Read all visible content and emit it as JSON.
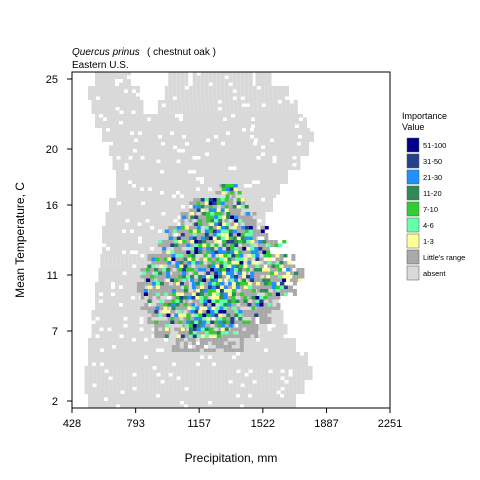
{
  "chart_data": {
    "type": "heatmap",
    "title": {
      "species": "Quercus prinus",
      "common": "( chestnut oak )",
      "region": "Eastern U.S."
    },
    "xlabel": "Precipitation, mm",
    "ylabel": "Mean Temperature, C",
    "x_ticks": [
      428,
      793,
      1157,
      1522,
      1887,
      2251
    ],
    "y_ticks": [
      2,
      7,
      11,
      16,
      20,
      25
    ],
    "xlim": [
      428,
      2251
    ],
    "ylim": [
      1.5,
      25.5
    ],
    "grid": false,
    "legend": {
      "title_lines": [
        "Importance",
        "Value"
      ],
      "placement": "right",
      "entries": [
        {
          "label": "51-100",
          "color": "#00008b"
        },
        {
          "label": "31-50",
          "color": "#27408b"
        },
        {
          "label": "21-30",
          "color": "#1e90ff"
        },
        {
          "label": "11-20",
          "color": "#2e8b57"
        },
        {
          "label": "7-10",
          "color": "#32cd32"
        },
        {
          "label": "4-6",
          "color": "#66ffaa"
        },
        {
          "label": "1-3",
          "color": "#ffff99"
        },
        {
          "label": "Little's range",
          "color": "#a9a9a9"
        },
        {
          "label": "absent",
          "color": "#d9d9d9"
        }
      ]
    },
    "regions": {
      "absent_color": "#d9d9d9",
      "range_color": "#a9a9a9",
      "absent_rows": [
        {
          "t": 25,
          "x": [
            [
              560,
              760
            ],
            [
              980,
              1080
            ],
            [
              1120,
              1460
            ],
            [
              1480,
              1560
            ]
          ]
        },
        {
          "t": 24,
          "x": [
            [
              520,
              800
            ],
            [
              960,
              1560
            ],
            [
              1580,
              1660
            ]
          ]
        },
        {
          "t": 23,
          "x": [
            [
              540,
              820
            ],
            [
              920,
              1700
            ]
          ]
        },
        {
          "t": 22,
          "x": [
            [
              560,
              1760
            ]
          ]
        },
        {
          "t": 21,
          "x": [
            [
              600,
              1800
            ]
          ]
        },
        {
          "t": 20,
          "x": [
            [
              640,
              1780
            ]
          ]
        },
        {
          "t": 19,
          "x": [
            [
              660,
              1720
            ]
          ]
        },
        {
          "t": 18,
          "x": [
            [
              680,
              1660
            ]
          ]
        },
        {
          "t": 17,
          "x": [
            [
              680,
              1600
            ]
          ]
        },
        {
          "t": 16,
          "x": [
            [
              640,
              1560
            ]
          ]
        },
        {
          "t": 15,
          "x": [
            [
              620,
              1520
            ]
          ]
        },
        {
          "t": 14,
          "x": [
            [
              600,
              1480
            ]
          ]
        },
        {
          "t": 13,
          "x": [
            [
              600,
              1480
            ]
          ]
        },
        {
          "t": 12,
          "x": [
            [
              590,
              1520
            ]
          ]
        },
        {
          "t": 11,
          "x": [
            [
              580,
              1560
            ]
          ]
        },
        {
          "t": 10,
          "x": [
            [
              560,
              1580
            ]
          ]
        },
        {
          "t": 9,
          "x": [
            [
              560,
              1600
            ]
          ]
        },
        {
          "t": 8,
          "x": [
            [
              540,
              1620
            ]
          ]
        },
        {
          "t": 7,
          "x": [
            [
              540,
              1660
            ]
          ]
        },
        {
          "t": 6,
          "x": [
            [
              520,
              1700
            ]
          ]
        },
        {
          "t": 5,
          "x": [
            [
              520,
              1760
            ]
          ]
        },
        {
          "t": 4,
          "x": [
            [
              500,
              1800
            ]
          ]
        },
        {
          "t": 3,
          "x": [
            [
              500,
              1760
            ]
          ]
        },
        {
          "t": 2,
          "x": [
            [
              520,
              1700
            ]
          ]
        }
      ],
      "range_rows": [
        {
          "t": 17,
          "x": [
            [
              1250,
              1350
            ]
          ]
        },
        {
          "t": 16,
          "x": [
            [
              1100,
              1420
            ]
          ]
        },
        {
          "t": 15,
          "x": [
            [
              1050,
              1480
            ]
          ]
        },
        {
          "t": 14,
          "x": [
            [
              980,
              1540
            ]
          ]
        },
        {
          "t": 13,
          "x": [
            [
              920,
              1620
            ]
          ]
        },
        {
          "t": 12,
          "x": [
            [
              860,
              1700
            ]
          ]
        },
        {
          "t": 11,
          "x": [
            [
              820,
              1740
            ]
          ]
        },
        {
          "t": 10,
          "x": [
            [
              800,
              1700
            ]
          ]
        },
        {
          "t": 9,
          "x": [
            [
              820,
              1620
            ]
          ]
        },
        {
          "t": 8,
          "x": [
            [
              860,
              1560
            ]
          ]
        },
        {
          "t": 7,
          "x": [
            [
              900,
              1480
            ]
          ]
        },
        {
          "t": 6,
          "x": [
            [
              1000,
              1400
            ]
          ]
        }
      ],
      "importance_rows": [
        {
          "t": 17,
          "x": [
            1240,
            1380
          ]
        },
        {
          "t": 16,
          "x": [
            1120,
            1420
          ]
        },
        {
          "t": 15,
          "x": [
            1060,
            1460
          ]
        },
        {
          "t": 14,
          "x": [
            960,
            1560
          ]
        },
        {
          "t": 13,
          "x": [
            900,
            1660
          ]
        },
        {
          "t": 12,
          "x": [
            860,
            1720
          ]
        },
        {
          "t": 11,
          "x": [
            830,
            1740
          ]
        },
        {
          "t": 10,
          "x": [
            840,
            1660
          ]
        },
        {
          "t": 9,
          "x": [
            860,
            1560
          ]
        },
        {
          "t": 8,
          "x": [
            900,
            1480
          ]
        },
        {
          "t": 7,
          "x": [
            960,
            1380
          ]
        }
      ]
    }
  }
}
